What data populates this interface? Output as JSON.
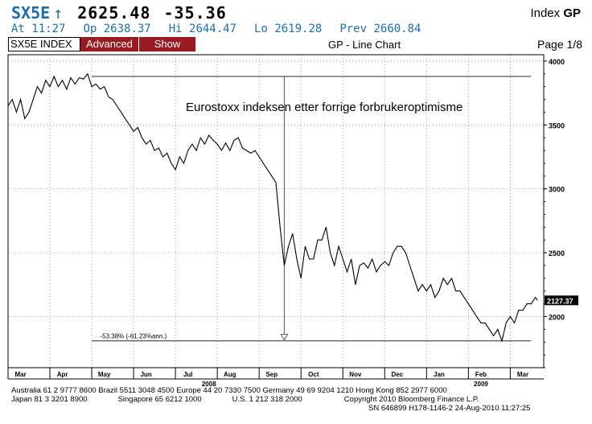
{
  "header": {
    "ticker": "SX5E",
    "arrow": "↑",
    "last": "2625.48",
    "change": "-35.36",
    "index_label": "Index",
    "index_bold": "GP",
    "time": "At 11:27",
    "open": "Op 2638.37",
    "high": "Hi 2644.47",
    "low": "Lo 2619.28",
    "prev": "Prev 2660.84"
  },
  "tabs": {
    "index": "SX5E INDEX",
    "advanced": "Advanced",
    "show": "Show"
  },
  "chart_title": "GP - Line Chart",
  "page": "Page 1/8",
  "colors": {
    "tab_bg": "#9a1a22",
    "header_blue": "#1a6fb3",
    "line": "#000000",
    "grid": "#888888"
  },
  "chart_data": {
    "type": "line",
    "annotation": "Eurostoxx indeksen etter forrige forbrukeroptimisme",
    "decline_label": "-53.38% (-61.23%ann.)",
    "last_price_label": "2127.37",
    "high_level": 3880,
    "low_level": 1810,
    "vertical_marker_x": 6.6,
    "ylim": [
      1600,
      4050
    ],
    "yticks": [
      2000,
      2500,
      3000,
      3500,
      4000
    ],
    "xlim": [
      0,
      12.8
    ],
    "months": [
      {
        "label": "Mar",
        "pos": 0.3
      },
      {
        "label": "Apr",
        "pos": 1.3
      },
      {
        "label": "May",
        "pos": 2.3
      },
      {
        "label": "Jun",
        "pos": 3.3
      },
      {
        "label": "Jul",
        "pos": 4.3
      },
      {
        "label": "Aug",
        "pos": 5.3
      },
      {
        "label": "Sep",
        "pos": 6.3
      },
      {
        "label": "Oct",
        "pos": 7.3
      },
      {
        "label": "Nov",
        "pos": 8.3
      },
      {
        "label": "Dec",
        "pos": 9.3
      },
      {
        "label": "Jan",
        "pos": 10.3
      },
      {
        "label": "Feb",
        "pos": 11.3
      },
      {
        "label": "Mar",
        "pos": 12.3
      }
    ],
    "year_labels": [
      {
        "label": "2008",
        "pos": 4.8
      },
      {
        "label": "2009",
        "pos": 11.3
      }
    ],
    "x": [
      0.0,
      0.1,
      0.2,
      0.3,
      0.4,
      0.5,
      0.6,
      0.7,
      0.8,
      0.9,
      1.0,
      1.1,
      1.2,
      1.3,
      1.4,
      1.5,
      1.6,
      1.7,
      1.8,
      1.9,
      2.0,
      2.1,
      2.2,
      2.3,
      2.4,
      2.5,
      2.6,
      2.7,
      2.8,
      2.9,
      3.0,
      3.1,
      3.2,
      3.3,
      3.4,
      3.5,
      3.6,
      3.7,
      3.8,
      3.9,
      4.0,
      4.1,
      4.2,
      4.3,
      4.4,
      4.5,
      4.6,
      4.7,
      4.8,
      4.9,
      5.0,
      5.1,
      5.2,
      5.3,
      5.4,
      5.5,
      5.6,
      5.7,
      5.8,
      5.9,
      6.0,
      6.1,
      6.2,
      6.3,
      6.4,
      6.5,
      6.6,
      6.7,
      6.8,
      6.9,
      7.0,
      7.1,
      7.2,
      7.3,
      7.4,
      7.5,
      7.6,
      7.7,
      7.8,
      7.9,
      8.0,
      8.1,
      8.2,
      8.3,
      8.4,
      8.5,
      8.6,
      8.7,
      8.8,
      8.9,
      9.0,
      9.1,
      9.2,
      9.3,
      9.4,
      9.5,
      9.6,
      9.7,
      9.8,
      9.9,
      10.0,
      10.1,
      10.2,
      10.3,
      10.4,
      10.5,
      10.6,
      10.7,
      10.8,
      10.9,
      11.0,
      11.1,
      11.2,
      11.3,
      11.4,
      11.5,
      11.6,
      11.7,
      11.8,
      11.9,
      12.0,
      12.1,
      12.2,
      12.3,
      12.4,
      12.5,
      12.6,
      12.65
    ],
    "y": [
      3650,
      3700,
      3600,
      3700,
      3550,
      3600,
      3700,
      3800,
      3750,
      3850,
      3800,
      3880,
      3800,
      3850,
      3780,
      3870,
      3820,
      3870,
      3860,
      3900,
      3800,
      3820,
      3780,
      3800,
      3720,
      3700,
      3650,
      3600,
      3550,
      3500,
      3450,
      3480,
      3400,
      3350,
      3380,
      3300,
      3320,
      3250,
      3280,
      3200,
      3150,
      3250,
      3200,
      3300,
      3350,
      3300,
      3400,
      3350,
      3420,
      3380,
      3350,
      3300,
      3360,
      3300,
      3380,
      3400,
      3320,
      3300,
      3280,
      3300,
      3250,
      3200,
      3150,
      3100,
      3050,
      2700,
      2400,
      2550,
      2650,
      2450,
      2300,
      2550,
      2450,
      2450,
      2600,
      2600,
      2700,
      2500,
      2400,
      2550,
      2450,
      2350,
      2450,
      2250,
      2400,
      2420,
      2380,
      2450,
      2350,
      2400,
      2430,
      2400,
      2500,
      2550,
      2550,
      2500,
      2400,
      2300,
      2200,
      2250,
      2200,
      2250,
      2150,
      2200,
      2300,
      2250,
      2300,
      2200,
      2200,
      2150,
      2100,
      2050,
      2000,
      1950,
      1950,
      1900,
      1850,
      1900,
      1810,
      1950,
      2000,
      1950,
      2050,
      2050,
      2100,
      2100,
      2150,
      2127
    ]
  },
  "footer": {
    "line1": "Australia 61 2 9777 8600 Brazil 5511 3048 4500 Europe 44 20 7330 7500 Germany 49 69 9204 1210 Hong Kong 852 2977 6000",
    "line2a": "Japan 81 3 3201 8900",
    "line2b": "Singapore 65 6212 1000",
    "line2c": "U.S. 1 212 318 2000",
    "line2d": "Copyright 2010 Bloomberg Finance L.P.",
    "line3": "SN 646899 H178-1146-2 24-Aug-2010 11:27:25"
  }
}
